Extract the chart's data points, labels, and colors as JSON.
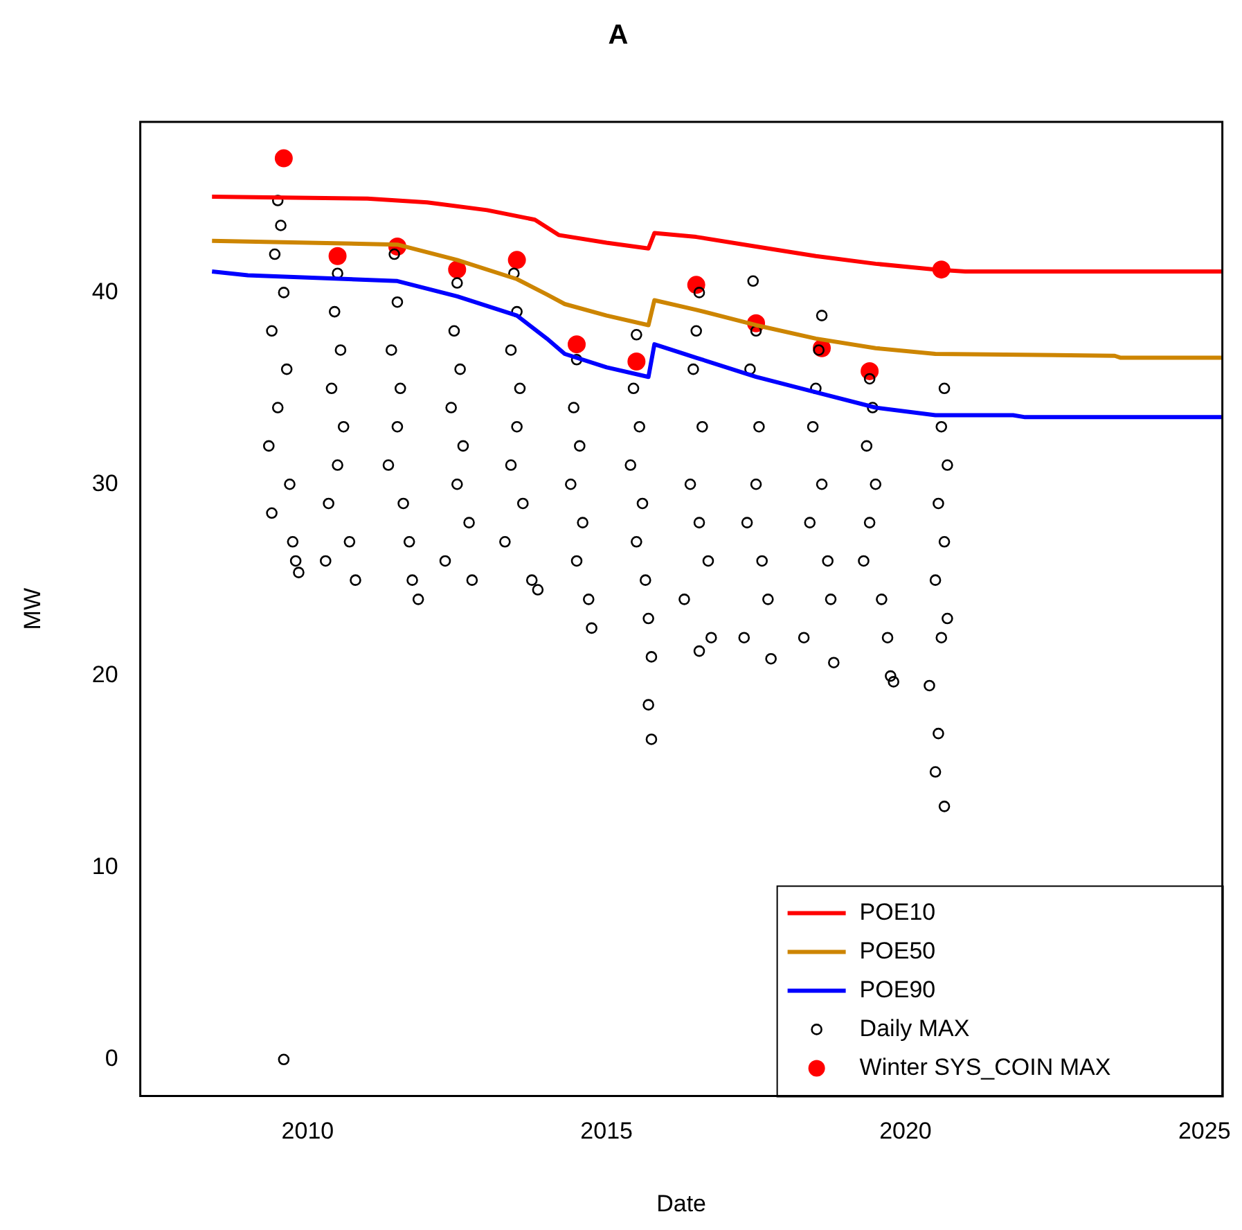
{
  "chart_data": {
    "type": "line",
    "title": "A",
    "xlabel": "Date",
    "ylabel": "MW",
    "xlim": [
      2007.2,
      2025.3
    ],
    "xticks": [
      2010,
      2015,
      2020,
      2025
    ],
    "ylim": [
      -1.9,
      48.9
    ],
    "yticks": [
      0,
      10,
      20,
      30,
      40
    ],
    "grid": false,
    "legend": "bottom right",
    "series": [
      {
        "name": "POE10",
        "color": "#ff0000",
        "marker": "none",
        "x": [
          2008.4,
          2011.0,
          2012.0,
          2013.0,
          2013.8,
          2014.2,
          2015.0,
          2015.7,
          2015.8,
          2016.5,
          2017.5,
          2018.5,
          2019.5,
          2020.5,
          2021.0,
          2025.3
        ],
        "values": [
          45.0,
          44.9,
          44.7,
          44.3,
          43.8,
          43.0,
          42.6,
          42.3,
          43.1,
          42.9,
          42.4,
          41.9,
          41.5,
          41.2,
          41.1,
          41.1
        ]
      },
      {
        "name": "POE50",
        "color": "#cd8500",
        "marker": "none",
        "x": [
          2008.4,
          2011.5,
          2012.5,
          2013.5,
          2014.0,
          2014.3,
          2015.0,
          2015.7,
          2015.8,
          2016.5,
          2017.5,
          2018.5,
          2019.5,
          2020.5,
          2023.5,
          2023.6,
          2025.3
        ],
        "values": [
          42.7,
          42.5,
          41.7,
          40.7,
          39.9,
          39.4,
          38.8,
          38.3,
          39.6,
          39.1,
          38.3,
          37.6,
          37.1,
          36.8,
          36.7,
          36.6,
          36.6
        ]
      },
      {
        "name": "POE90",
        "color": "#0000ff",
        "marker": "none",
        "x": [
          2008.4,
          2009.0,
          2011.5,
          2012.5,
          2013.5,
          2014.0,
          2014.3,
          2015.0,
          2015.7,
          2015.8,
          2016.5,
          2017.5,
          2018.5,
          2019.5,
          2020.5,
          2021.8,
          2022.0,
          2025.3
        ],
        "values": [
          41.1,
          40.9,
          40.6,
          39.8,
          38.8,
          37.6,
          36.8,
          36.1,
          35.6,
          37.3,
          36.6,
          35.6,
          34.8,
          34.0,
          33.6,
          33.6,
          33.5,
          33.5
        ]
      },
      {
        "name": "Daily MAX",
        "type": "scatter",
        "color": "#000000",
        "marker": "circle",
        "x": [
          2009.5,
          2009.55,
          2009.45,
          2009.6,
          2009.4,
          2009.65,
          2009.5,
          2009.35,
          2009.7,
          2009.4,
          2009.75,
          2009.8,
          2009.85,
          2009.6,
          2010.5,
          2010.45,
          2010.55,
          2010.4,
          2010.6,
          2010.5,
          2010.35,
          2010.7,
          2010.3,
          2010.8,
          2011.45,
          2011.5,
          2011.4,
          2011.55,
          2011.5,
          2011.35,
          2011.6,
          2011.7,
          2011.75,
          2011.85,
          2012.5,
          2012.45,
          2012.55,
          2012.4,
          2012.6,
          2012.5,
          2012.7,
          2012.3,
          2012.75,
          2013.45,
          2013.5,
          2013.4,
          2013.55,
          2013.5,
          2013.4,
          2013.6,
          2013.3,
          2013.75,
          2013.85,
          2014.5,
          2014.45,
          2014.55,
          2014.4,
          2014.6,
          2014.5,
          2014.7,
          2014.75,
          2015.5,
          2015.45,
          2015.55,
          2015.4,
          2015.6,
          2015.5,
          2015.65,
          2015.7,
          2015.75,
          2015.7,
          2015.75,
          2016.55,
          2016.5,
          2016.45,
          2016.6,
          2016.4,
          2016.55,
          2016.7,
          2016.3,
          2016.75,
          2016.55,
          2017.45,
          2017.5,
          2017.4,
          2017.55,
          2017.5,
          2017.35,
          2017.6,
          2017.7,
          2017.3,
          2017.75,
          2018.6,
          2018.55,
          2018.5,
          2018.45,
          2018.6,
          2018.4,
          2018.7,
          2018.75,
          2018.3,
          2018.8,
          2019.4,
          2019.45,
          2019.35,
          2019.5,
          2019.4,
          2019.3,
          2019.6,
          2019.7,
          2019.75,
          2019.8,
          2020.65,
          2020.6,
          2020.7,
          2020.55,
          2020.65,
          2020.5,
          2020.7,
          2020.6,
          2020.4,
          2020.55,
          2020.5,
          2020.65
        ],
        "values": [
          44.8,
          43.5,
          42,
          40,
          38,
          36,
          34,
          32,
          30,
          28.5,
          27,
          26,
          25.4,
          0,
          41,
          39,
          37,
          35,
          33,
          31,
          29,
          27,
          26,
          25,
          42.0,
          39.5,
          37,
          35,
          33,
          31,
          29,
          27,
          25,
          24,
          40.5,
          38,
          36,
          34,
          32,
          30,
          28,
          26,
          25,
          41,
          39,
          37,
          35,
          33,
          31,
          29,
          27,
          25,
          24.5,
          36.5,
          34,
          32,
          30,
          28,
          26,
          24,
          22.5,
          37.8,
          35,
          33,
          31,
          29,
          27,
          25,
          23,
          21,
          18.5,
          16.7,
          40,
          38,
          36,
          33,
          30,
          28,
          26,
          24,
          22,
          21.3,
          40.6,
          38,
          36,
          33,
          30,
          28,
          26,
          24,
          22,
          20.9,
          38.8,
          37,
          35,
          33,
          30,
          28,
          26,
          24,
          22,
          20.7,
          35.5,
          34,
          32,
          30,
          28,
          26,
          24,
          22,
          20,
          19.7,
          35,
          33,
          31,
          29,
          27,
          25,
          23,
          22,
          19.5,
          17,
          15,
          13.2
        ]
      },
      {
        "name": "Winter SYS_COIN MAX",
        "type": "scatter",
        "color": "#ff0000",
        "marker": "circle",
        "x": [
          2009.6,
          2010.5,
          2011.5,
          2012.5,
          2013.5,
          2014.5,
          2015.5,
          2016.5,
          2017.5,
          2018.6,
          2019.4,
          2020.6
        ],
        "values": [
          47.0,
          41.9,
          42.4,
          41.2,
          41.7,
          37.3,
          36.4,
          40.4,
          38.4,
          37.1,
          35.9,
          41.2
        ]
      }
    ]
  }
}
